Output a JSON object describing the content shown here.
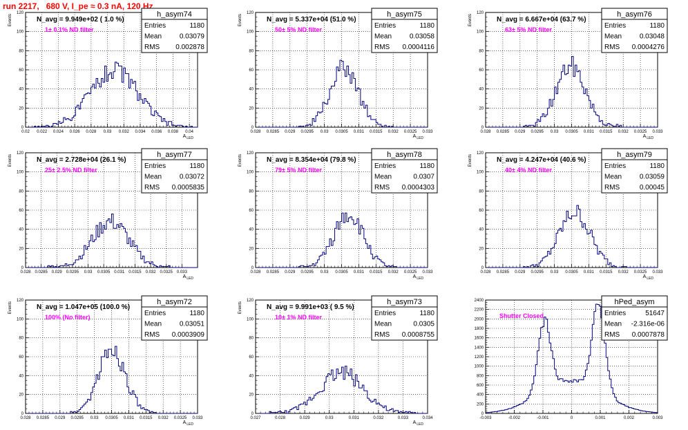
{
  "page": {
    "title": "run 2217,   680 V, I_pe ≈ 0.3 nA, 120 Hz"
  },
  "colors": {
    "histogram_line": "#000080",
    "annotation_pink": "#ff00ff",
    "title_red": "#ff0000",
    "axes": "#000000"
  },
  "chart_data": [
    {
      "type": "histogram",
      "name": "h_asym74",
      "navg_label": "N_avg = 9.949e+02 ( 1.0 %)",
      "filter_label": "1± 0.1% ND filter",
      "stats": {
        "Entries": "1180",
        "Mean": "0.03079",
        "RMS": "0.002878"
      },
      "ylabel": "Events",
      "xlabel": "A_LED",
      "xlim": [
        0.02,
        0.041
      ],
      "ylim": [
        0,
        120
      ],
      "xticks": [
        "0.02",
        "0.022",
        "0.024",
        "0.026",
        "0.028",
        "0.03",
        "0.032",
        "0.034",
        "0.036",
        "0.038",
        "0.04"
      ],
      "xtick_values": [
        0.02,
        0.022,
        0.024,
        0.026,
        0.028,
        0.03,
        0.032,
        0.034,
        0.036,
        0.038,
        0.04
      ],
      "yticks": [
        "0",
        "20",
        "40",
        "60",
        "80",
        "100",
        "120"
      ],
      "ytick_values": [
        0,
        20,
        40,
        60,
        80,
        100,
        120
      ],
      "mean": 0.03079,
      "rms": 0.002878,
      "peak": 60,
      "seed": 74
    },
    {
      "type": "histogram",
      "name": "h_asym75",
      "navg_label": "N_avg = 5.337e+04 (51.0 %)",
      "filter_label": "50± 5% ND filter",
      "stats": {
        "Entries": "1180",
        "Mean": "0.03058",
        "RMS": "0.0004116"
      },
      "ylabel": "Events",
      "xlabel": "A_LED",
      "xlim": [
        0.028,
        0.033
      ],
      "ylim": [
        0,
        120
      ],
      "xticks": [
        "0.028",
        "0.0285",
        "0.029",
        "0.0295",
        "0.03",
        "0.0305",
        "0.031",
        "0.0315",
        "0.032",
        "0.0325",
        "0.033"
      ],
      "xtick_values": [
        0.028,
        0.0285,
        0.029,
        0.0295,
        0.03,
        0.0305,
        0.031,
        0.0315,
        0.032,
        0.0325,
        0.033
      ],
      "yticks": [
        "0",
        "20",
        "40",
        "60",
        "80",
        "100",
        "120"
      ],
      "ytick_values": [
        0,
        20,
        40,
        60,
        80,
        100,
        120
      ],
      "mean": 0.03058,
      "rms": 0.0004116,
      "peak": 62,
      "seed": 75
    },
    {
      "type": "histogram",
      "name": "h_asym76",
      "navg_label": "N_avg = 6.667e+04 (63.7 %)",
      "filter_label": "63± 5% ND filter",
      "stats": {
        "Entries": "1180",
        "Mean": "0.03048",
        "RMS": "0.0004276"
      },
      "ylabel": "Events",
      "xlabel": "A_LED",
      "xlim": [
        0.028,
        0.033
      ],
      "ylim": [
        0,
        120
      ],
      "xticks": [
        "0.028",
        "0.0285",
        "0.029",
        "0.0295",
        "0.03",
        "0.0305",
        "0.031",
        "0.0315",
        "0.032",
        "0.0325",
        "0.033"
      ],
      "xtick_values": [
        0.028,
        0.0285,
        0.029,
        0.0295,
        0.03,
        0.0305,
        0.031,
        0.0315,
        0.032,
        0.0325,
        0.033
      ],
      "yticks": [
        "0",
        "20",
        "40",
        "60",
        "80",
        "100",
        "120"
      ],
      "ytick_values": [
        0,
        20,
        40,
        60,
        80,
        100,
        120
      ],
      "mean": 0.03048,
      "rms": 0.0004276,
      "peak": 64,
      "seed": 76
    },
    {
      "type": "histogram",
      "name": "h_asym77",
      "navg_label": "N_avg = 2.728e+04 (26.1 %)",
      "filter_label": "25± 2.5% ND filter",
      "stats": {
        "Entries": "1180",
        "Mean": "0.03072",
        "RMS": "0.0005835"
      },
      "ylabel": "Events",
      "xlabel": "A_LED",
      "xlim": [
        0.028,
        0.0335
      ],
      "ylim": [
        0,
        120
      ],
      "xticks": [
        "0.028",
        "0.0285",
        "0.029",
        "0.0295",
        "0.03",
        "0.0305",
        "0.031",
        "0.0315",
        "0.032",
        "0.0325",
        "0.033"
      ],
      "xtick_values": [
        0.028,
        0.0285,
        0.029,
        0.0295,
        0.03,
        0.0305,
        0.031,
        0.0315,
        0.032,
        0.0325,
        0.033
      ],
      "yticks": [
        "0",
        "20",
        "40",
        "60",
        "80",
        "100",
        "120"
      ],
      "ytick_values": [
        0,
        20,
        40,
        60,
        80,
        100,
        120
      ],
      "mean": 0.03072,
      "rms": 0.0005835,
      "peak": 48,
      "seed": 77
    },
    {
      "type": "histogram",
      "name": "h_asym78",
      "navg_label": "N_avg = 8.354e+04 (79.8 %)",
      "filter_label": "79± 5% ND filter",
      "stats": {
        "Entries": "1180",
        "Mean": "0.0307",
        "RMS": "0.0004303"
      },
      "ylabel": "Events",
      "xlabel": "A_LED",
      "xlim": [
        0.028,
        0.033
      ],
      "ylim": [
        0,
        120
      ],
      "xticks": [
        "0.028",
        "0.0285",
        "0.029",
        "0.0295",
        "0.03",
        "0.0305",
        "0.031",
        "0.0315",
        "0.032",
        "0.0325",
        "0.033"
      ],
      "xtick_values": [
        0.028,
        0.0285,
        0.029,
        0.0295,
        0.03,
        0.0305,
        0.031,
        0.0315,
        0.032,
        0.0325,
        0.033
      ],
      "yticks": [
        "0",
        "20",
        "40",
        "60",
        "80",
        "100",
        "120"
      ],
      "ytick_values": [
        0,
        20,
        40,
        60,
        80,
        100,
        120
      ],
      "mean": 0.0307,
      "rms": 0.0004303,
      "peak": 56,
      "seed": 78
    },
    {
      "type": "histogram",
      "name": "h_asym79",
      "navg_label": "N_avg = 4.247e+04 (40.6 %)",
      "filter_label": "40± 4% ND filter",
      "stats": {
        "Entries": "1180",
        "Mean": "0.03059",
        "RMS": "0.00045"
      },
      "ylabel": "Events",
      "xlabel": "A_LED",
      "xlim": [
        0.028,
        0.033
      ],
      "ylim": [
        0,
        120
      ],
      "xticks": [
        "0.028",
        "0.0285",
        "0.029",
        "0.0295",
        "0.03",
        "0.0305",
        "0.031",
        "0.0315",
        "0.032",
        "0.0325",
        "0.033"
      ],
      "xtick_values": [
        0.028,
        0.0285,
        0.029,
        0.0295,
        0.03,
        0.0305,
        0.031,
        0.0315,
        0.032,
        0.0325,
        0.033
      ],
      "yticks": [
        "0",
        "20",
        "40",
        "60",
        "80",
        "100",
        "120"
      ],
      "ytick_values": [
        0,
        20,
        40,
        60,
        80,
        100,
        120
      ],
      "mean": 0.03059,
      "rms": 0.00045,
      "peak": 58,
      "seed": 79
    },
    {
      "type": "histogram",
      "name": "h_asym72",
      "navg_label": "N_avg = 1.047e+05 (100.0 %)",
      "filter_label": "100% (No filter)",
      "stats": {
        "Entries": "1180",
        "Mean": "0.03051",
        "RMS": "0.0003909"
      },
      "ylabel": "Events",
      "xlabel": "A_LED",
      "xlim": [
        0.028,
        0.033
      ],
      "ylim": [
        0,
        120
      ],
      "xticks": [
        "0.028",
        "0.0285",
        "0.029",
        "0.0295",
        "0.03",
        "0.0305",
        "0.031",
        "0.0315",
        "0.032",
        "0.0325",
        "0.033"
      ],
      "xtick_values": [
        0.028,
        0.0285,
        0.029,
        0.0295,
        0.03,
        0.0305,
        0.031,
        0.0315,
        0.032,
        0.0325,
        0.033
      ],
      "yticks": [
        "0",
        "20",
        "40",
        "60",
        "80",
        "100",
        "120"
      ],
      "ytick_values": [
        0,
        20,
        40,
        60,
        80,
        100,
        120
      ],
      "mean": 0.03051,
      "rms": 0.0003909,
      "peak": 68,
      "seed": 72
    },
    {
      "type": "histogram",
      "name": "h_asym73",
      "navg_label": "N_avg = 9.991e+03 ( 9.5 %)",
      "filter_label": "10± 1% ND filter",
      "stats": {
        "Entries": "1180",
        "Mean": "0.0305",
        "RMS": "0.0008755"
      },
      "ylabel": "Events",
      "xlabel": "A_LED",
      "xlim": [
        0.027,
        0.034
      ],
      "ylim": [
        0,
        120
      ],
      "xticks": [
        "0.027",
        "0.028",
        "0.029",
        "0.03",
        "0.031",
        "0.032",
        "0.033",
        "0.034"
      ],
      "xtick_values": [
        0.027,
        0.028,
        0.029,
        0.03,
        0.031,
        0.032,
        0.033,
        0.034
      ],
      "yticks": [
        "0",
        "20",
        "40",
        "60",
        "80",
        "100",
        "120"
      ],
      "ytick_values": [
        0,
        20,
        40,
        60,
        80,
        100,
        120
      ],
      "mean": 0.0305,
      "rms": 0.0008755,
      "peak": 44,
      "seed": 73
    },
    {
      "type": "histogram",
      "name": "hPed_asym",
      "navg_label": "",
      "filter_label": "Shutter Closed",
      "stats": {
        "Entries": "51647",
        "Mean": "-2.316e-06",
        "RMS": "0.0007878"
      },
      "ylabel": "",
      "xlabel": "",
      "xlim": [
        -0.003,
        0.003
      ],
      "ylim": [
        0,
        2400
      ],
      "xticks": [
        "-0.003",
        "-0.002",
        "-0.001",
        "0",
        "0.001",
        "0.002",
        "0.003"
      ],
      "xtick_values": [
        -0.003,
        -0.002,
        -0.001,
        0,
        0.001,
        0.002,
        0.003
      ],
      "yticks": [
        "0",
        "200",
        "400",
        "600",
        "800",
        "1000",
        "1200",
        "1400",
        "1600",
        "1800",
        "2000",
        "2200",
        "2400"
      ],
      "ytick_values": [
        0,
        200,
        400,
        600,
        800,
        1000,
        1200,
        1400,
        1600,
        1800,
        2000,
        2200,
        2400
      ],
      "bimodal": true,
      "peak_left": 1900,
      "peak_right": 2300,
      "center_level": 700,
      "mean": -2.3e-06,
      "rms": 0.0007878,
      "seed": 99
    }
  ]
}
